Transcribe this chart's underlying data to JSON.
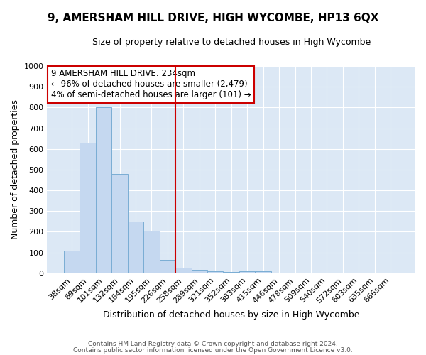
{
  "title": "9, AMERSHAM HILL DRIVE, HIGH WYCOMBE, HP13 6QX",
  "subtitle": "Size of property relative to detached houses in High Wycombe",
  "xlabel": "Distribution of detached houses by size in High Wycombe",
  "ylabel": "Number of detached properties",
  "bar_color": "#c5d8f0",
  "bar_edge_color": "#7aadd4",
  "fig_background_color": "#ffffff",
  "plot_background_color": "#dce8f5",
  "grid_color": "#ffffff",
  "categories": [
    "38sqm",
    "69sqm",
    "101sqm",
    "132sqm",
    "164sqm",
    "195sqm",
    "226sqm",
    "258sqm",
    "289sqm",
    "321sqm",
    "352sqm",
    "383sqm",
    "415sqm",
    "446sqm",
    "478sqm",
    "509sqm",
    "540sqm",
    "572sqm",
    "603sqm",
    "635sqm",
    "666sqm"
  ],
  "values": [
    110,
    630,
    800,
    480,
    250,
    205,
    63,
    28,
    17,
    10,
    5,
    10,
    10,
    0,
    0,
    0,
    0,
    0,
    0,
    0,
    0
  ],
  "ylim": [
    0,
    1000
  ],
  "yticks": [
    0,
    100,
    200,
    300,
    400,
    500,
    600,
    700,
    800,
    900,
    1000
  ],
  "property_line_x": 6.5,
  "property_line_color": "#cc0000",
  "annotation_line1": "9 AMERSHAM HILL DRIVE: 234sqm",
  "annotation_line2": "← 96% of detached houses are smaller (2,479)",
  "annotation_line3": "4% of semi-detached houses are larger (101) →",
  "annotation_box_color": "#ffffff",
  "annotation_border_color": "#cc0000",
  "footer_line1": "Contains HM Land Registry data © Crown copyright and database right 2024.",
  "footer_line2": "Contains public sector information licensed under the Open Government Licence v3.0.",
  "title_fontsize": 11,
  "subtitle_fontsize": 9,
  "ylabel_fontsize": 9,
  "xlabel_fontsize": 9,
  "tick_fontsize": 8,
  "footer_fontsize": 6.5,
  "annotation_fontsize": 8.5
}
